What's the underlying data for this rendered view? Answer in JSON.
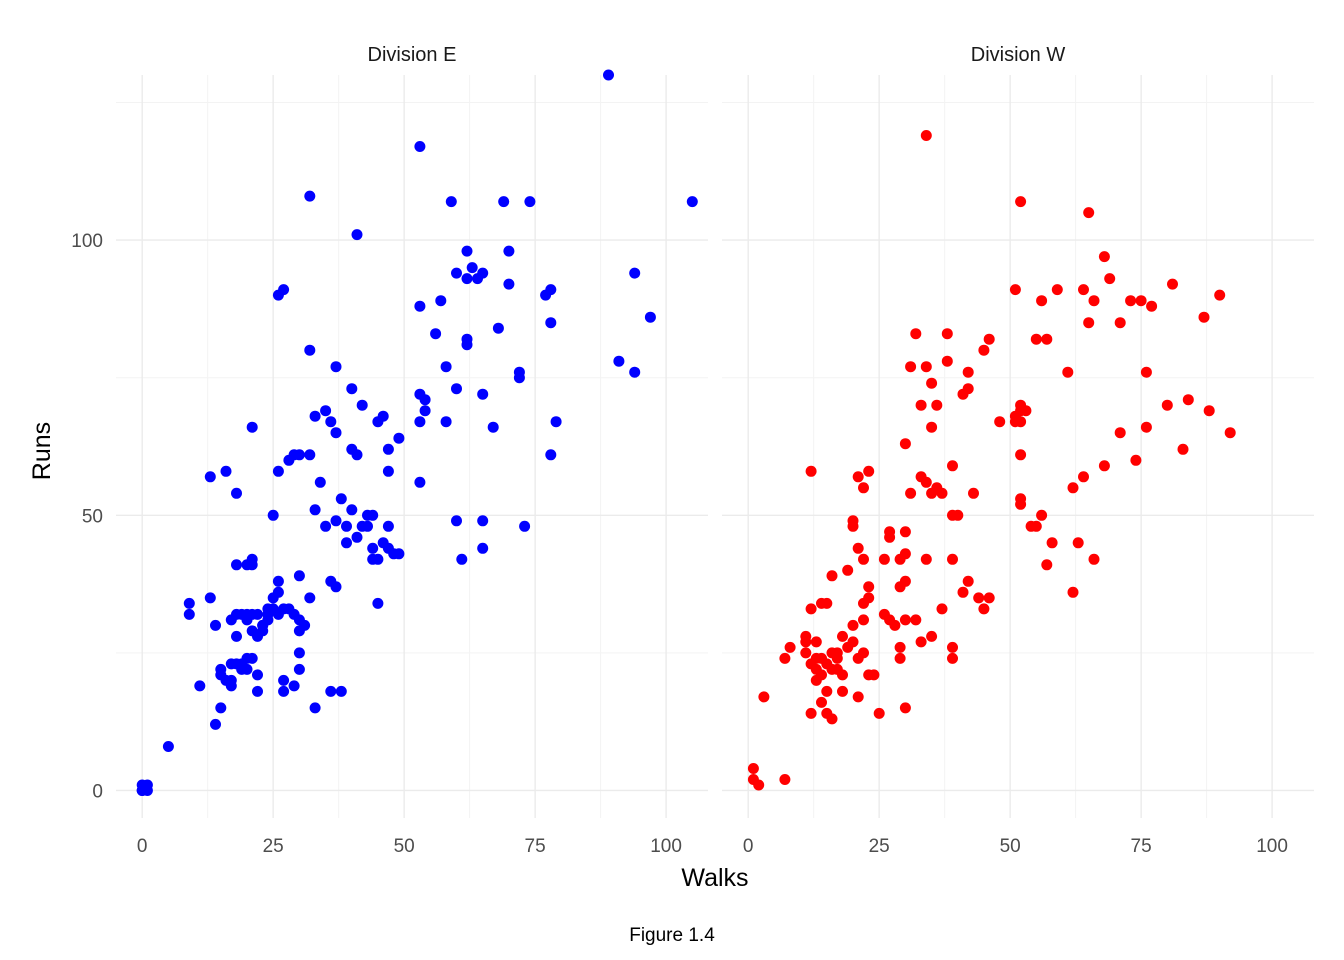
{
  "chart_data": {
    "type": "scatter",
    "xlabel": "Walks",
    "ylabel": "Runs",
    "caption": "Figure 1.4",
    "xlim": [
      -5,
      108
    ],
    "ylim": [
      -5,
      130
    ],
    "x_ticks": [
      0,
      25,
      50,
      75,
      100
    ],
    "y_ticks": [
      0,
      50,
      100
    ],
    "grid": true,
    "panels": [
      {
        "name": "Division E",
        "color": "#0000ff",
        "points": [
          [
            0,
            0
          ],
          [
            0,
            1
          ],
          [
            1,
            1
          ],
          [
            1,
            0
          ],
          [
            0,
            0
          ],
          [
            5,
            8
          ],
          [
            9,
            34
          ],
          [
            9,
            32
          ],
          [
            11,
            19
          ],
          [
            13,
            35
          ],
          [
            13,
            57
          ],
          [
            14,
            30
          ],
          [
            14,
            12
          ],
          [
            15,
            22
          ],
          [
            15,
            21
          ],
          [
            15,
            15
          ],
          [
            16,
            58
          ],
          [
            16,
            20
          ],
          [
            17,
            19
          ],
          [
            17,
            20
          ],
          [
            17,
            31
          ],
          [
            17,
            23
          ],
          [
            18,
            28
          ],
          [
            18,
            32
          ],
          [
            18,
            41
          ],
          [
            18,
            54
          ],
          [
            18,
            23
          ],
          [
            19,
            22
          ],
          [
            19,
            23
          ],
          [
            19,
            32
          ],
          [
            20,
            31
          ],
          [
            20,
            41
          ],
          [
            20,
            22
          ],
          [
            20,
            24
          ],
          [
            20,
            32
          ],
          [
            21,
            42
          ],
          [
            21,
            66
          ],
          [
            21,
            24
          ],
          [
            21,
            41
          ],
          [
            21,
            32
          ],
          [
            21,
            29
          ],
          [
            22,
            28
          ],
          [
            22,
            21
          ],
          [
            22,
            18
          ],
          [
            22,
            32
          ],
          [
            23,
            29
          ],
          [
            23,
            30
          ],
          [
            23,
            30
          ],
          [
            24,
            32
          ],
          [
            24,
            31
          ],
          [
            24,
            33
          ],
          [
            25,
            50
          ],
          [
            25,
            33
          ],
          [
            25,
            35
          ],
          [
            26,
            90
          ],
          [
            26,
            58
          ],
          [
            26,
            38
          ],
          [
            26,
            36
          ],
          [
            26,
            32
          ],
          [
            27,
            91
          ],
          [
            27,
            33
          ],
          [
            27,
            20
          ],
          [
            27,
            18
          ],
          [
            28,
            33
          ],
          [
            28,
            60
          ],
          [
            29,
            32
          ],
          [
            29,
            61
          ],
          [
            29,
            19
          ],
          [
            30,
            61
          ],
          [
            30,
            39
          ],
          [
            30,
            31
          ],
          [
            30,
            29
          ],
          [
            30,
            25
          ],
          [
            30,
            22
          ],
          [
            31,
            30
          ],
          [
            32,
            108
          ],
          [
            32,
            80
          ],
          [
            32,
            61
          ],
          [
            32,
            35
          ],
          [
            33,
            68
          ],
          [
            33,
            51
          ],
          [
            33,
            15
          ],
          [
            34,
            56
          ],
          [
            35,
            69
          ],
          [
            35,
            48
          ],
          [
            36,
            67
          ],
          [
            36,
            38
          ],
          [
            36,
            18
          ],
          [
            37,
            77
          ],
          [
            37,
            65
          ],
          [
            37,
            49
          ],
          [
            37,
            37
          ],
          [
            38,
            53
          ],
          [
            38,
            18
          ],
          [
            39,
            48
          ],
          [
            39,
            45
          ],
          [
            40,
            73
          ],
          [
            40,
            62
          ],
          [
            40,
            51
          ],
          [
            41,
            101
          ],
          [
            41,
            61
          ],
          [
            41,
            46
          ],
          [
            42,
            70
          ],
          [
            42,
            48
          ],
          [
            43,
            50
          ],
          [
            43,
            48
          ],
          [
            44,
            50
          ],
          [
            44,
            44
          ],
          [
            44,
            42
          ],
          [
            45,
            67
          ],
          [
            45,
            42
          ],
          [
            45,
            34
          ],
          [
            46,
            68
          ],
          [
            46,
            45
          ],
          [
            47,
            62
          ],
          [
            47,
            58
          ],
          [
            47,
            48
          ],
          [
            47,
            44
          ],
          [
            48,
            43
          ],
          [
            49,
            64
          ],
          [
            49,
            43
          ],
          [
            53,
            117
          ],
          [
            53,
            88
          ],
          [
            53,
            72
          ],
          [
            53,
            67
          ],
          [
            53,
            56
          ],
          [
            54,
            71
          ],
          [
            54,
            69
          ],
          [
            56,
            83
          ],
          [
            57,
            89
          ],
          [
            58,
            77
          ],
          [
            58,
            67
          ],
          [
            59,
            107
          ],
          [
            60,
            94
          ],
          [
            60,
            73
          ],
          [
            60,
            49
          ],
          [
            61,
            42
          ],
          [
            62,
            98
          ],
          [
            62,
            93
          ],
          [
            62,
            82
          ],
          [
            62,
            81
          ],
          [
            63,
            95
          ],
          [
            64,
            93
          ],
          [
            65,
            94
          ],
          [
            65,
            72
          ],
          [
            65,
            49
          ],
          [
            65,
            44
          ],
          [
            67,
            66
          ],
          [
            68,
            84
          ],
          [
            69,
            107
          ],
          [
            70,
            98
          ],
          [
            70,
            92
          ],
          [
            72,
            76
          ],
          [
            72,
            75
          ],
          [
            73,
            48
          ],
          [
            74,
            107
          ],
          [
            77,
            90
          ],
          [
            78,
            91
          ],
          [
            78,
            85
          ],
          [
            78,
            61
          ],
          [
            79,
            67
          ],
          [
            89,
            130
          ],
          [
            91,
            78
          ],
          [
            94,
            94
          ],
          [
            94,
            76
          ],
          [
            97,
            86
          ],
          [
            105,
            107
          ]
        ]
      },
      {
        "name": "Division W",
        "color": "#ff0000",
        "points": [
          [
            1,
            4
          ],
          [
            1,
            2
          ],
          [
            2,
            1
          ],
          [
            3,
            17
          ],
          [
            7,
            2
          ],
          [
            7,
            24
          ],
          [
            8,
            26
          ],
          [
            11,
            28
          ],
          [
            11,
            27
          ],
          [
            11,
            25
          ],
          [
            12,
            58
          ],
          [
            12,
            33
          ],
          [
            12,
            23
          ],
          [
            12,
            14
          ],
          [
            13,
            27
          ],
          [
            13,
            20
          ],
          [
            13,
            22
          ],
          [
            13,
            24
          ],
          [
            14,
            34
          ],
          [
            14,
            24
          ],
          [
            14,
            21
          ],
          [
            14,
            16
          ],
          [
            15,
            34
          ],
          [
            15,
            23
          ],
          [
            15,
            18
          ],
          [
            15,
            14
          ],
          [
            16,
            39
          ],
          [
            16,
            25
          ],
          [
            16,
            22
          ],
          [
            16,
            13
          ],
          [
            17,
            25
          ],
          [
            17,
            24
          ],
          [
            17,
            22
          ],
          [
            18,
            21
          ],
          [
            18,
            18
          ],
          [
            18,
            28
          ],
          [
            19,
            40
          ],
          [
            19,
            26
          ],
          [
            20,
            49
          ],
          [
            20,
            48
          ],
          [
            20,
            27
          ],
          [
            20,
            30
          ],
          [
            21,
            57
          ],
          [
            21,
            44
          ],
          [
            21,
            24
          ],
          [
            21,
            17
          ],
          [
            22,
            55
          ],
          [
            22,
            42
          ],
          [
            22,
            34
          ],
          [
            22,
            31
          ],
          [
            22,
            25
          ],
          [
            23,
            58
          ],
          [
            23,
            37
          ],
          [
            23,
            35
          ],
          [
            23,
            21
          ],
          [
            24,
            21
          ],
          [
            25,
            14
          ],
          [
            26,
            42
          ],
          [
            26,
            32
          ],
          [
            27,
            47
          ],
          [
            27,
            46
          ],
          [
            27,
            31
          ],
          [
            28,
            30
          ],
          [
            29,
            42
          ],
          [
            29,
            37
          ],
          [
            29,
            26
          ],
          [
            29,
            24
          ],
          [
            30,
            63
          ],
          [
            30,
            47
          ],
          [
            30,
            43
          ],
          [
            30,
            38
          ],
          [
            30,
            31
          ],
          [
            30,
            15
          ],
          [
            31,
            77
          ],
          [
            31,
            54
          ],
          [
            32,
            83
          ],
          [
            32,
            31
          ],
          [
            33,
            70
          ],
          [
            33,
            57
          ],
          [
            33,
            27
          ],
          [
            34,
            77
          ],
          [
            34,
            56
          ],
          [
            34,
            42
          ],
          [
            34,
            119
          ],
          [
            35,
            74
          ],
          [
            35,
            66
          ],
          [
            35,
            54
          ],
          [
            35,
            28
          ],
          [
            36,
            55
          ],
          [
            36,
            70
          ],
          [
            37,
            54
          ],
          [
            37,
            33
          ],
          [
            38,
            83
          ],
          [
            38,
            78
          ],
          [
            39,
            59
          ],
          [
            39,
            50
          ],
          [
            39,
            42
          ],
          [
            39,
            26
          ],
          [
            39,
            24
          ],
          [
            40,
            50
          ],
          [
            41,
            36
          ],
          [
            41,
            72
          ],
          [
            42,
            76
          ],
          [
            42,
            73
          ],
          [
            42,
            38
          ],
          [
            43,
            54
          ],
          [
            44,
            35
          ],
          [
            45,
            80
          ],
          [
            45,
            33
          ],
          [
            46,
            82
          ],
          [
            46,
            35
          ],
          [
            48,
            67
          ],
          [
            51,
            67
          ],
          [
            51,
            68
          ],
          [
            51,
            91
          ],
          [
            52,
            107
          ],
          [
            52,
            70
          ],
          [
            52,
            69
          ],
          [
            52,
            61
          ],
          [
            52,
            53
          ],
          [
            52,
            52
          ],
          [
            52,
            67
          ],
          [
            53,
            69
          ],
          [
            54,
            48
          ],
          [
            55,
            48
          ],
          [
            55,
            82
          ],
          [
            56,
            89
          ],
          [
            56,
            50
          ],
          [
            57,
            82
          ],
          [
            57,
            41
          ],
          [
            58,
            45
          ],
          [
            59,
            91
          ],
          [
            61,
            76
          ],
          [
            62,
            55
          ],
          [
            62,
            36
          ],
          [
            63,
            45
          ],
          [
            64,
            91
          ],
          [
            64,
            57
          ],
          [
            65,
            105
          ],
          [
            65,
            85
          ],
          [
            66,
            89
          ],
          [
            66,
            42
          ],
          [
            68,
            97
          ],
          [
            68,
            59
          ],
          [
            69,
            93
          ],
          [
            71,
            85
          ],
          [
            71,
            65
          ],
          [
            73,
            89
          ],
          [
            74,
            60
          ],
          [
            75,
            89
          ],
          [
            76,
            76
          ],
          [
            76,
            66
          ],
          [
            77,
            88
          ],
          [
            80,
            70
          ],
          [
            81,
            92
          ],
          [
            83,
            62
          ],
          [
            84,
            71
          ],
          [
            87,
            86
          ],
          [
            88,
            69
          ],
          [
            90,
            90
          ],
          [
            92,
            65
          ]
        ]
      }
    ]
  }
}
